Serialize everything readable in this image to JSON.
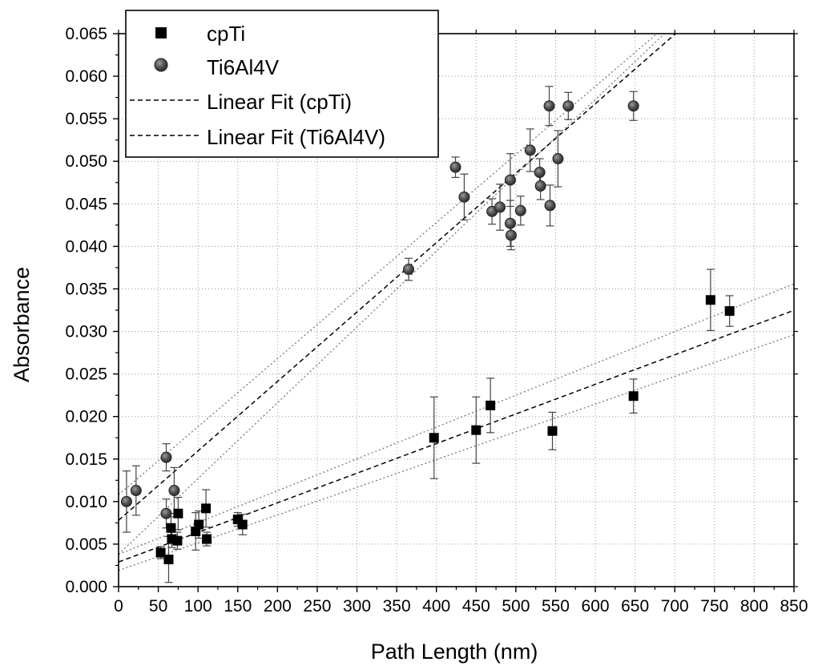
{
  "chart_data": {
    "type": "scatter",
    "xlabel": "Path Length (nm)",
    "ylabel": "Absorbance",
    "xlim": [
      0,
      850
    ],
    "ylim": [
      0.0,
      0.065
    ],
    "x_ticks": [
      "0",
      "50",
      "100",
      "150",
      "200",
      "250",
      "300",
      "350",
      "400",
      "450",
      "500",
      "550",
      "600",
      "650",
      "700",
      "750",
      "800",
      "850"
    ],
    "y_ticks": [
      "0.000",
      "0.005",
      "0.010",
      "0.015",
      "0.020",
      "0.025",
      "0.030",
      "0.035",
      "0.040",
      "0.045",
      "0.050",
      "0.055",
      "0.060",
      "0.065"
    ],
    "grid": true,
    "legend_position": "top-left",
    "series": [
      {
        "name": "cpTi",
        "marker": "square",
        "color": "#000000",
        "points": [
          {
            "x": 53,
            "y": 0.004,
            "err": 0.0007
          },
          {
            "x": 63,
            "y": 0.0032,
            "err": 0.0027
          },
          {
            "x": 66,
            "y": 0.0069,
            "err": 0.0013
          },
          {
            "x": 67,
            "y": 0.0056,
            "err": 0.001
          },
          {
            "x": 74,
            "y": 0.0054,
            "err": 0.001
          },
          {
            "x": 75,
            "y": 0.0086,
            "err": 0.0019
          },
          {
            "x": 97,
            "y": 0.0065,
            "err": 0.0022
          },
          {
            "x": 101,
            "y": 0.0073,
            "err": 0.0016
          },
          {
            "x": 110,
            "y": 0.0092,
            "err": 0.0022
          },
          {
            "x": 111,
            "y": 0.0056,
            "err": 0.0008
          },
          {
            "x": 150,
            "y": 0.0079,
            "err": 0.0008
          },
          {
            "x": 156,
            "y": 0.0073,
            "err": 0.0012
          },
          {
            "x": 397,
            "y": 0.0175,
            "err": 0.0048
          },
          {
            "x": 450,
            "y": 0.0184,
            "err": 0.0039
          },
          {
            "x": 468,
            "y": 0.0213,
            "err": 0.0032
          },
          {
            "x": 546,
            "y": 0.0183,
            "err": 0.0022
          },
          {
            "x": 648,
            "y": 0.0224,
            "err": 0.002
          },
          {
            "x": 745,
            "y": 0.0337,
            "err": 0.0036
          },
          {
            "x": 769,
            "y": 0.0324,
            "err": 0.0018
          }
        ],
        "fit": {
          "slope": 3.48e-05,
          "intercept": 0.0029
        },
        "band_upper": {
          "slope": 3.74e-05,
          "intercept": 0.0038
        },
        "band_lower": {
          "slope": 3.26e-05,
          "intercept": 0.0019
        }
      },
      {
        "name": "Ti6Al4V",
        "marker": "circle",
        "color": "#555555",
        "points": [
          {
            "x": 10,
            "y": 0.01,
            "err": 0.0036
          },
          {
            "x": 22,
            "y": 0.0113,
            "err": 0.0029
          },
          {
            "x": 60,
            "y": 0.0152,
            "err": 0.0016
          },
          {
            "x": 60,
            "y": 0.0086,
            "err": 0.0017
          },
          {
            "x": 70,
            "y": 0.0113,
            "err": 0.0027
          },
          {
            "x": 365,
            "y": 0.0373,
            "err": 0.0013
          },
          {
            "x": 424,
            "y": 0.0493,
            "err": 0.0012
          },
          {
            "x": 435,
            "y": 0.0458,
            "err": 0.0027
          },
          {
            "x": 470,
            "y": 0.0441,
            "err": 0.0015
          },
          {
            "x": 480,
            "y": 0.0446,
            "err": 0.0027
          },
          {
            "x": 493,
            "y": 0.0478,
            "err": 0.0031
          },
          {
            "x": 493,
            "y": 0.0427,
            "err": 0.0027
          },
          {
            "x": 494,
            "y": 0.0413,
            "err": 0.0017
          },
          {
            "x": 506,
            "y": 0.0442,
            "err": 0.0017
          },
          {
            "x": 518,
            "y": 0.0513,
            "err": 0.0025
          },
          {
            "x": 530,
            "y": 0.0487,
            "err": 0.0016
          },
          {
            "x": 531,
            "y": 0.0471,
            "err": 0.0016
          },
          {
            "x": 542,
            "y": 0.0565,
            "err": 0.0023
          },
          {
            "x": 543,
            "y": 0.0448,
            "err": 0.0024
          },
          {
            "x": 553,
            "y": 0.0503,
            "err": 0.0033
          },
          {
            "x": 566,
            "y": 0.0565,
            "err": 0.0016
          },
          {
            "x": 648,
            "y": 0.0565,
            "err": 0.0017
          }
        ],
        "fit": {
          "slope": 8.16e-05,
          "intercept": 0.0078
        },
        "band_upper": {
          "slope": 8e-05,
          "intercept": 0.0108
        },
        "band_lower": {
          "slope": 8.91e-05,
          "intercept": 0.0038
        }
      }
    ],
    "legend": [
      {
        "label": "cpTi",
        "kind": "marker-square"
      },
      {
        "label": "Ti6Al4V",
        "kind": "marker-circle"
      },
      {
        "label": "Linear Fit (cpTi)",
        "kind": "dashed-line"
      },
      {
        "label": "Linear Fit (Ti6Al4V)",
        "kind": "dashed-line"
      }
    ]
  }
}
